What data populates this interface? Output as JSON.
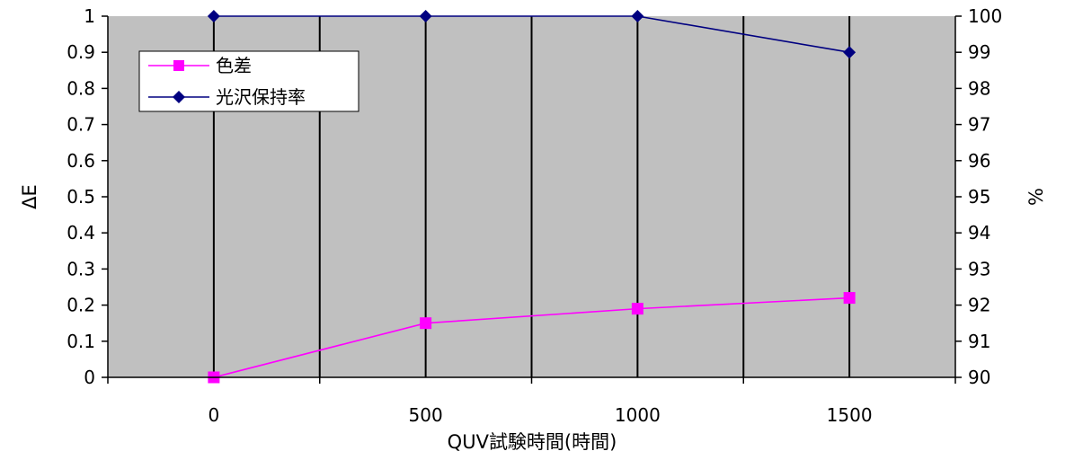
{
  "chart_data": {
    "type": "line",
    "categories": [
      "0",
      "500",
      "1000",
      "1500"
    ],
    "xlabel": "QUV試験時間(時間)",
    "ylabel": "ΔE",
    "y2label": "%",
    "ylim": [
      0,
      1
    ],
    "y2lim": [
      90,
      100
    ],
    "yticks": [
      "0",
      "0.1",
      "0.2",
      "0.3",
      "0.4",
      "0.5",
      "0.6",
      "0.7",
      "0.8",
      "0.9",
      "1"
    ],
    "y2ticks": [
      "90",
      "91",
      "92",
      "93",
      "94",
      "95",
      "96",
      "97",
      "98",
      "99",
      "100"
    ],
    "grid": "vertical",
    "plot_background": "#c0c0c0",
    "legend_position": "top-left",
    "series": [
      {
        "name": "色差",
        "axis": "left",
        "color": "#ff00ff",
        "marker": "square",
        "values": [
          0.0,
          0.15,
          0.19,
          0.22
        ]
      },
      {
        "name": "光沢保持率",
        "axis": "right",
        "color": "#000080",
        "marker": "diamond",
        "values": [
          100,
          100,
          100,
          99
        ]
      }
    ]
  }
}
